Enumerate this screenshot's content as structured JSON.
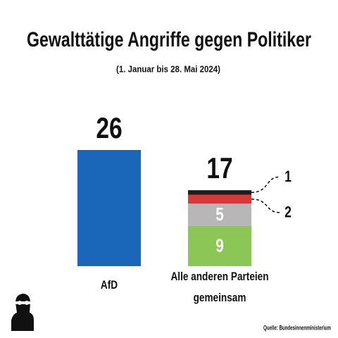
{
  "chart_data": {
    "type": "stacked_bar",
    "title": "Gewalttätige Angriffe gegen Politiker",
    "subtitle": "(1. Januar bis 28. Mai 2024)",
    "source": "Quelle: Bundesinnenministerium",
    "categories": [
      "AfD",
      "Alle anderen Parteien gemeinsam"
    ],
    "totals": [
      26,
      17
    ],
    "series": [
      {
        "color": "#1a66b8",
        "values": [
          26,
          null
        ]
      },
      {
        "color": "#8cc657",
        "values": [
          null,
          9
        ]
      },
      {
        "color": "#b7b7b7",
        "values": [
          null,
          5
        ]
      },
      {
        "color": "#d9383a",
        "values": [
          null,
          2
        ]
      },
      {
        "color": "#1c1c1c",
        "values": [
          null,
          1
        ]
      }
    ]
  }
}
